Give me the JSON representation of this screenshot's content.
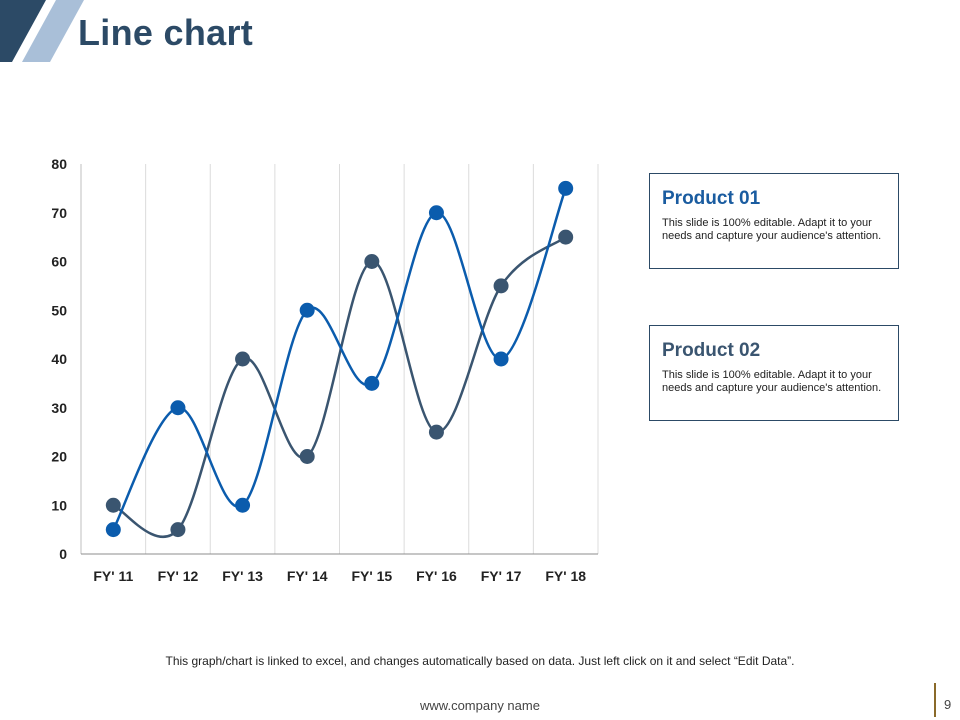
{
  "slide": {
    "title": "Line chart",
    "footnote": "This graph/chart is linked to excel, and changes automatically based on data. Just left click on it and select “Edit Data”.",
    "footer_url": "www.company name",
    "page_number": "9"
  },
  "legend_boxes": [
    {
      "title": "Product 01",
      "text": "This slide is 100% editable. Adapt it to your needs and capture your audience's attention.",
      "color": "#1a5ca0"
    },
    {
      "title": "Product 02",
      "text": "This slide is 100% editable. Adapt it to your needs and capture your audience's attention.",
      "color": "#3a5570"
    }
  ],
  "colors": {
    "product_01": "#0b5cad",
    "product_02": "#3a5570",
    "accent_dark": "#2c4a66",
    "accent_light": "#a9bfd8"
  },
  "chart_data": {
    "type": "line",
    "categories": [
      "FY' 11",
      "FY' 12",
      "FY' 13",
      "FY' 14",
      "FY' 15",
      "FY' 16",
      "FY' 17",
      "FY' 18"
    ],
    "series": [
      {
        "name": "Product 01",
        "values": [
          5,
          30,
          10,
          50,
          35,
          70,
          40,
          75
        ]
      },
      {
        "name": "Product 02",
        "values": [
          10,
          5,
          40,
          20,
          60,
          25,
          55,
          65
        ]
      }
    ],
    "ylim": [
      0,
      80
    ],
    "yticks": [
      "0",
      "10",
      "20",
      "30",
      "40",
      "50",
      "60",
      "70",
      "80"
    ],
    "grid": "vertical",
    "smooth": true
  }
}
